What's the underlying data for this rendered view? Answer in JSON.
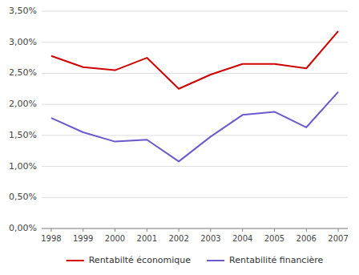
{
  "chart_data": {
    "type": "line",
    "x": [
      1998,
      1999,
      2000,
      2001,
      2002,
      2003,
      2004,
      2005,
      2006,
      2007
    ],
    "xlim": [
      1997.7,
      2007.3
    ],
    "xticks": [
      1998,
      1999,
      2000,
      2001,
      2002,
      2003,
      2004,
      2005,
      2006,
      2007
    ],
    "ylim": [
      0.0,
      0.035
    ],
    "yticks": [
      {
        "value": 0.0,
        "label": "0,00%"
      },
      {
        "value": 0.005,
        "label": "0,50%"
      },
      {
        "value": 0.01,
        "label": "1,00%"
      },
      {
        "value": 0.015,
        "label": "1,50%"
      },
      {
        "value": 0.02,
        "label": "2,00%"
      },
      {
        "value": 0.025,
        "label": "2,50%"
      },
      {
        "value": 0.03,
        "label": "3,00%"
      },
      {
        "value": 0.035,
        "label": "3,50%"
      }
    ],
    "series": [
      {
        "name": "Rentabilté économique",
        "color": "#d00000",
        "values": [
          0.0278,
          0.026,
          0.0255,
          0.0275,
          0.0225,
          0.0248,
          0.0265,
          0.0265,
          0.0258,
          0.0318
        ]
      },
      {
        "name": "Rentabilité financière",
        "color": "#6a5acd",
        "values": [
          0.0178,
          0.0155,
          0.014,
          0.0143,
          0.0108,
          0.0148,
          0.0183,
          0.0188,
          0.0163,
          0.022
        ]
      }
    ],
    "grid": true,
    "legend": "bottom"
  }
}
